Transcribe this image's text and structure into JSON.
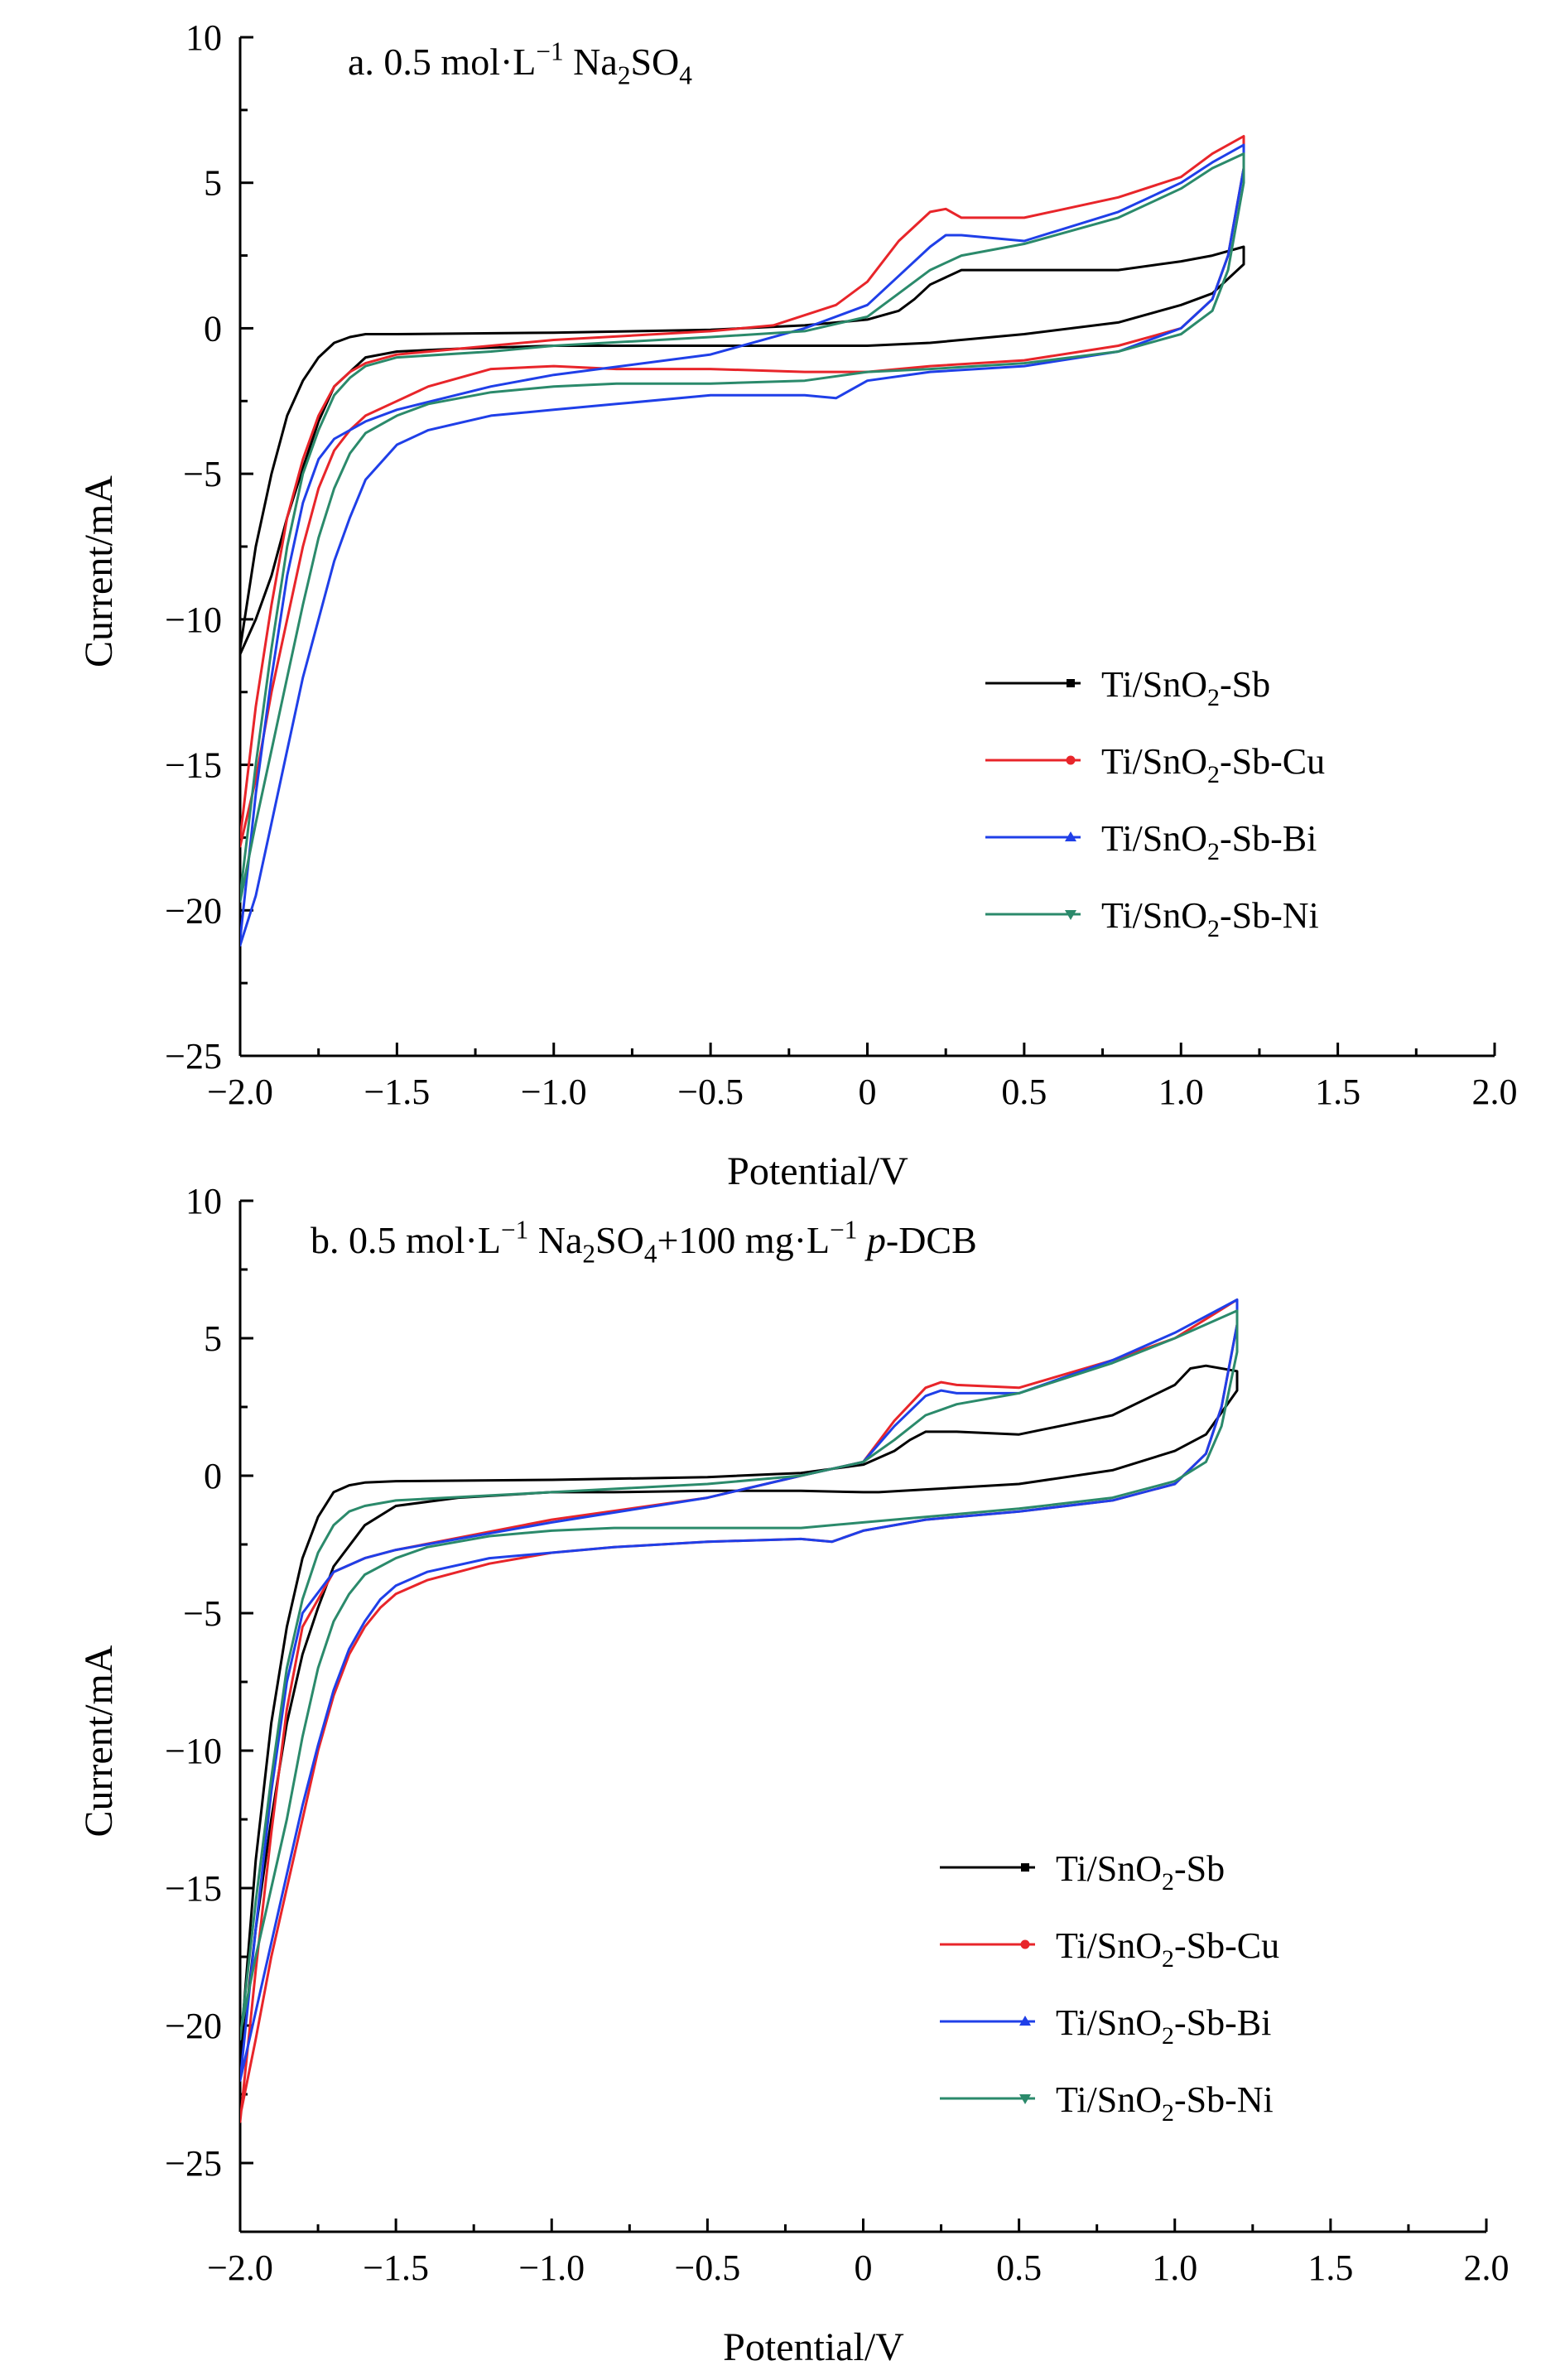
{
  "chart_data": [
    {
      "type": "line",
      "panel": "a",
      "title": "a. 0.5 mol·L⁻¹ Na₂SO₄",
      "title_parts": [
        "a. 0.5 mol·L",
        "−1",
        " Na",
        "2",
        "SO",
        "4"
      ],
      "xlabel": "Potential/V",
      "ylabel": "Current/mA",
      "xlim": [
        -2.0,
        2.0
      ],
      "ylim": [
        -25,
        10
      ],
      "xticks": [
        -2.0,
        -1.5,
        -1.0,
        -0.5,
        0,
        0.5,
        1.0,
        1.5,
        2.0
      ],
      "xtick_labels": [
        "−2.0",
        "−1.5",
        "−1.0",
        "−0.5",
        "0",
        "0.5",
        "1.0",
        "1.5",
        "2.0"
      ],
      "yticks": [
        10,
        5,
        0,
        -5,
        -10,
        -15,
        -20,
        -25
      ],
      "ytick_labels": [
        "10",
        "5",
        "0",
        "−5",
        "−10",
        "−15",
        "−20",
        "−25"
      ],
      "legend_position": "lower-right",
      "series": [
        {
          "name": "Ti/SnO₂-Sb",
          "name_parts": [
            "Ti/SnO",
            "2",
            "-Sb"
          ],
          "color": "#000000",
          "marker": "square",
          "x": [
            -2.0,
            -1.95,
            -1.9,
            -1.85,
            -1.8,
            -1.75,
            -1.7,
            -1.65,
            -1.6,
            -1.5,
            -1.0,
            -0.5,
            -0.2,
            0.0,
            0.1,
            0.15,
            0.2,
            0.3,
            0.5,
            0.8,
            1.0,
            1.1,
            1.2,
            1.2,
            1.1,
            1.0,
            0.8,
            0.5,
            0.2,
            0.0,
            -0.2,
            -0.5,
            -0.8,
            -1.0,
            -1.3,
            -1.5,
            -1.6,
            -1.7,
            -1.75,
            -1.8,
            -1.85,
            -1.9,
            -1.95,
            -2.0
          ],
          "y": [
            -11.0,
            -7.5,
            -5.0,
            -3.0,
            -1.8,
            -1.0,
            -0.5,
            -0.3,
            -0.2,
            -0.2,
            -0.15,
            -0.05,
            0.1,
            0.3,
            0.6,
            1.0,
            1.5,
            2.0,
            2.0,
            2.0,
            2.3,
            2.5,
            2.8,
            2.2,
            1.2,
            0.8,
            0.2,
            -0.2,
            -0.5,
            -0.6,
            -0.6,
            -0.6,
            -0.6,
            -0.6,
            -0.7,
            -0.8,
            -1.0,
            -2.0,
            -3.2,
            -4.8,
            -6.5,
            -8.5,
            -10.0,
            -11.2
          ]
        },
        {
          "name": "Ti/SnO₂-Sb-Cu",
          "name_parts": [
            "Ti/SnO",
            "2",
            "-Sb-Cu"
          ],
          "color": "#e8252a",
          "marker": "circle",
          "x": [
            -2.0,
            -1.95,
            -1.9,
            -1.85,
            -1.8,
            -1.75,
            -1.7,
            -1.65,
            -1.6,
            -1.5,
            -1.2,
            -1.0,
            -0.5,
            -0.3,
            -0.1,
            0.0,
            0.1,
            0.2,
            0.25,
            0.3,
            0.5,
            0.8,
            1.0,
            1.1,
            1.2,
            1.2,
            1.15,
            1.1,
            1.0,
            0.8,
            0.5,
            0.2,
            0.0,
            -0.2,
            -0.5,
            -0.8,
            -1.0,
            -1.2,
            -1.4,
            -1.5,
            -1.6,
            -1.65,
            -1.7,
            -1.75,
            -1.8,
            -1.85,
            -1.9,
            -1.95,
            -2.0
          ],
          "y": [
            -17.5,
            -13.0,
            -9.5,
            -6.5,
            -4.5,
            -3.0,
            -2.0,
            -1.5,
            -1.2,
            -0.9,
            -0.6,
            -0.4,
            -0.1,
            0.1,
            0.8,
            1.6,
            3.0,
            4.0,
            4.1,
            3.8,
            3.8,
            4.5,
            5.2,
            6.0,
            6.6,
            5.5,
            2.5,
            1.0,
            0.0,
            -0.6,
            -1.1,
            -1.3,
            -1.5,
            -1.5,
            -1.4,
            -1.4,
            -1.3,
            -1.4,
            -2.0,
            -2.5,
            -3.0,
            -3.5,
            -4.2,
            -5.5,
            -7.5,
            -10.0,
            -12.5,
            -15.5,
            -17.8
          ]
        },
        {
          "name": "Ti/SnO₂-Sb-Bi",
          "name_parts": [
            "Ti/SnO",
            "2",
            "-Sb-Bi"
          ],
          "color": "#1f3fe8",
          "marker": "triangle-up",
          "x": [
            -2.0,
            -1.95,
            -1.9,
            -1.85,
            -1.8,
            -1.75,
            -1.7,
            -1.6,
            -1.5,
            -1.2,
            -1.0,
            -0.5,
            -0.2,
            0.0,
            0.1,
            0.2,
            0.25,
            0.3,
            0.5,
            0.8,
            1.0,
            1.1,
            1.2,
            1.2,
            1.15,
            1.1,
            1.0,
            0.8,
            0.5,
            0.2,
            0.0,
            -0.1,
            -0.2,
            -0.5,
            -0.8,
            -1.0,
            -1.2,
            -1.4,
            -1.5,
            -1.6,
            -1.65,
            -1.7,
            -1.75,
            -1.8,
            -1.85,
            -1.9,
            -1.95,
            -2.0
          ],
          "y": [
            -21.0,
            -16.0,
            -12.0,
            -8.5,
            -6.0,
            -4.5,
            -3.8,
            -3.2,
            -2.8,
            -2.0,
            -1.6,
            -0.9,
            0.0,
            0.8,
            1.8,
            2.8,
            3.2,
            3.2,
            3.0,
            4.0,
            5.0,
            5.7,
            6.3,
            5.5,
            2.5,
            1.0,
            0.0,
            -0.8,
            -1.3,
            -1.5,
            -1.8,
            -2.4,
            -2.3,
            -2.3,
            -2.6,
            -2.8,
            -3.0,
            -3.5,
            -4.0,
            -5.2,
            -6.5,
            -8.0,
            -10.0,
            -12.0,
            -14.5,
            -17.0,
            -19.5,
            -21.2
          ]
        },
        {
          "name": "Ti/SnO₂-Sb-Ni",
          "name_parts": [
            "Ti/SnO",
            "2",
            "-Sb-Ni"
          ],
          "color": "#2b8a6b",
          "marker": "triangle-down",
          "x": [
            -2.0,
            -1.95,
            -1.9,
            -1.85,
            -1.8,
            -1.75,
            -1.7,
            -1.65,
            -1.6,
            -1.5,
            -1.2,
            -1.0,
            -0.5,
            -0.2,
            0.0,
            0.1,
            0.2,
            0.3,
            0.5,
            0.8,
            1.0,
            1.1,
            1.2,
            1.2,
            1.15,
            1.1,
            1.0,
            0.8,
            0.5,
            0.2,
            0.0,
            -0.2,
            -0.5,
            -0.8,
            -1.0,
            -1.2,
            -1.4,
            -1.5,
            -1.6,
            -1.65,
            -1.7,
            -1.75,
            -1.8,
            -1.85,
            -1.9,
            -1.95,
            -2.0
          ],
          "y": [
            -19.5,
            -15.0,
            -11.0,
            -7.5,
            -5.0,
            -3.5,
            -2.3,
            -1.7,
            -1.3,
            -1.0,
            -0.8,
            -0.6,
            -0.3,
            -0.1,
            0.4,
            1.2,
            2.0,
            2.5,
            2.9,
            3.8,
            4.8,
            5.5,
            6.0,
            5.0,
            2.0,
            0.6,
            -0.2,
            -0.8,
            -1.2,
            -1.4,
            -1.5,
            -1.8,
            -1.9,
            -1.9,
            -2.0,
            -2.2,
            -2.6,
            -3.0,
            -3.6,
            -4.3,
            -5.5,
            -7.2,
            -9.5,
            -12.0,
            -14.5,
            -17.0,
            -19.7
          ]
        }
      ]
    },
    {
      "type": "line",
      "panel": "b",
      "title": "b. 0.5 mol·L⁻¹ Na₂SO₄+100 mg·L⁻¹ p-DCB",
      "title_parts": [
        "b. 0.5 mol·L",
        "−1",
        " Na",
        "2",
        "SO",
        "4",
        "+100 mg·L",
        "−1",
        " ",
        "p",
        "-DCB"
      ],
      "xlabel": "Potential/V",
      "ylabel": "Current/mA",
      "xlim": [
        -2.0,
        2.0
      ],
      "ylim": [
        -27.5,
        10
      ],
      "xticks": [
        -2.0,
        -1.5,
        -1.0,
        -0.5,
        0,
        0.5,
        1.0,
        1.5,
        2.0
      ],
      "xtick_labels": [
        "−2.0",
        "−1.5",
        "−1.0",
        "−0.5",
        "0",
        "0.5",
        "1.0",
        "1.5",
        "2.0"
      ],
      "yticks": [
        10,
        5,
        0,
        -5,
        -10,
        -15,
        -20,
        -25
      ],
      "ytick_labels": [
        "10",
        "5",
        "0",
        "−5",
        "−10",
        "−15",
        "−20",
        "−25"
      ],
      "legend_position": "lower-right",
      "series": [
        {
          "name": "Ti/SnO₂-Sb",
          "name_parts": [
            "Ti/SnO",
            "2",
            "-Sb"
          ],
          "color": "#000000",
          "marker": "square",
          "x": [
            -2.0,
            -1.95,
            -1.9,
            -1.85,
            -1.8,
            -1.75,
            -1.7,
            -1.65,
            -1.6,
            -1.5,
            -1.0,
            -0.5,
            -0.2,
            0.0,
            0.1,
            0.15,
            0.2,
            0.3,
            0.5,
            0.8,
            1.0,
            1.05,
            1.1,
            1.2,
            1.2,
            1.1,
            1.0,
            0.8,
            0.5,
            0.2,
            0.05,
            0.0,
            -0.2,
            -0.5,
            -0.8,
            -1.0,
            -1.3,
            -1.5,
            -1.6,
            -1.7,
            -1.75,
            -1.8,
            -1.85,
            -1.9,
            -1.95,
            -2.0
          ],
          "y": [
            -21.0,
            -14.0,
            -9.0,
            -5.5,
            -3.0,
            -1.5,
            -0.6,
            -0.35,
            -0.25,
            -0.2,
            -0.15,
            -0.05,
            0.1,
            0.4,
            0.9,
            1.3,
            1.6,
            1.6,
            1.5,
            2.2,
            3.3,
            3.9,
            4.0,
            3.8,
            3.1,
            1.5,
            0.9,
            0.2,
            -0.3,
            -0.5,
            -0.6,
            -0.6,
            -0.55,
            -0.55,
            -0.6,
            -0.6,
            -0.8,
            -1.1,
            -1.8,
            -3.3,
            -4.8,
            -6.5,
            -9.0,
            -12.5,
            -16.5,
            -21.5
          ]
        },
        {
          "name": "Ti/SnO₂-Sb-Cu",
          "name_parts": [
            "Ti/SnO",
            "2",
            "-Sb-Cu"
          ],
          "color": "#e8252a",
          "marker": "circle",
          "x": [
            -2.0,
            -1.95,
            -1.9,
            -1.85,
            -1.8,
            -1.7,
            -1.6,
            -1.5,
            -1.0,
            -0.5,
            -0.2,
            0.0,
            0.1,
            0.2,
            0.25,
            0.3,
            0.5,
            0.8,
            1.0,
            1.1,
            1.2,
            1.2,
            1.15,
            1.1,
            1.0,
            0.8,
            0.5,
            0.2,
            0.0,
            -0.1,
            -0.2,
            -0.5,
            -0.8,
            -1.0,
            -1.2,
            -1.4,
            -1.5,
            -1.55,
            -1.6,
            -1.65,
            -1.7,
            -1.75,
            -1.8,
            -1.85,
            -1.9,
            -1.95,
            -2.0
          ],
          "y": [
            -23.5,
            -18.0,
            -13.0,
            -8.5,
            -5.5,
            -3.5,
            -3.0,
            -2.7,
            -1.6,
            -0.8,
            0.0,
            0.5,
            2.0,
            3.2,
            3.4,
            3.3,
            3.2,
            4.2,
            5.0,
            5.7,
            6.4,
            5.5,
            2.5,
            0.8,
            -0.3,
            -0.9,
            -1.3,
            -1.6,
            -2.0,
            -2.4,
            -2.3,
            -2.4,
            -2.6,
            -2.8,
            -3.2,
            -3.8,
            -4.3,
            -4.8,
            -5.5,
            -6.5,
            -8.0,
            -10.0,
            -12.5,
            -15.0,
            -17.5,
            -20.5,
            -23.3
          ]
        },
        {
          "name": "Ti/SnO₂-Sb-Bi",
          "name_parts": [
            "Ti/SnO",
            "2",
            "-Sb-Bi"
          ],
          "color": "#1f3fe8",
          "marker": "triangle-up",
          "x": [
            -2.0,
            -1.95,
            -1.9,
            -1.85,
            -1.8,
            -1.7,
            -1.6,
            -1.5,
            -1.0,
            -0.5,
            -0.2,
            0.0,
            0.1,
            0.2,
            0.25,
            0.3,
            0.5,
            0.8,
            1.0,
            1.1,
            1.2,
            1.2,
            1.15,
            1.1,
            1.0,
            0.8,
            0.5,
            0.2,
            0.0,
            -0.1,
            -0.2,
            -0.5,
            -0.8,
            -1.0,
            -1.2,
            -1.4,
            -1.5,
            -1.55,
            -1.6,
            -1.65,
            -1.7,
            -1.75,
            -1.8,
            -1.85,
            -1.9,
            -1.95,
            -2.0
          ],
          "y": [
            -22.0,
            -16.5,
            -11.5,
            -7.5,
            -5.0,
            -3.5,
            -3.0,
            -2.7,
            -1.7,
            -0.8,
            0.0,
            0.5,
            1.8,
            2.9,
            3.1,
            3.0,
            3.0,
            4.2,
            5.2,
            5.8,
            6.4,
            5.5,
            2.5,
            0.8,
            -0.3,
            -0.9,
            -1.3,
            -1.6,
            -2.0,
            -2.4,
            -2.3,
            -2.4,
            -2.6,
            -2.8,
            -3.0,
            -3.5,
            -4.0,
            -4.5,
            -5.3,
            -6.3,
            -7.8,
            -9.8,
            -12.0,
            -14.5,
            -17.0,
            -19.5,
            -22.0
          ]
        },
        {
          "name": "Ti/SnO₂-Sb-Ni",
          "name_parts": [
            "Ti/SnO",
            "2",
            "-Sb-Ni"
          ],
          "color": "#2b8a6b",
          "marker": "triangle-down",
          "x": [
            -2.0,
            -1.95,
            -1.9,
            -1.85,
            -1.8,
            -1.75,
            -1.7,
            -1.65,
            -1.6,
            -1.5,
            -1.0,
            -0.5,
            -0.2,
            0.0,
            0.1,
            0.2,
            0.3,
            0.5,
            0.8,
            1.0,
            1.1,
            1.2,
            1.2,
            1.15,
            1.1,
            1.0,
            0.8,
            0.5,
            0.2,
            0.0,
            -0.2,
            -0.5,
            -0.8,
            -1.0,
            -1.2,
            -1.4,
            -1.5,
            -1.6,
            -1.65,
            -1.7,
            -1.75,
            -1.8,
            -1.85,
            -1.9,
            -1.95,
            -2.0
          ],
          "y": [
            -20.5,
            -15.5,
            -11.0,
            -7.0,
            -4.5,
            -2.8,
            -1.8,
            -1.3,
            -1.1,
            -0.9,
            -0.6,
            -0.3,
            0.0,
            0.5,
            1.3,
            2.2,
            2.6,
            3.0,
            4.1,
            5.0,
            5.5,
            6.0,
            4.5,
            1.8,
            0.5,
            -0.2,
            -0.8,
            -1.2,
            -1.5,
            -1.7,
            -1.9,
            -1.9,
            -1.9,
            -2.0,
            -2.2,
            -2.6,
            -3.0,
            -3.6,
            -4.3,
            -5.3,
            -7.0,
            -9.5,
            -12.5,
            -15.0,
            -17.5,
            -20.3
          ]
        }
      ]
    }
  ]
}
